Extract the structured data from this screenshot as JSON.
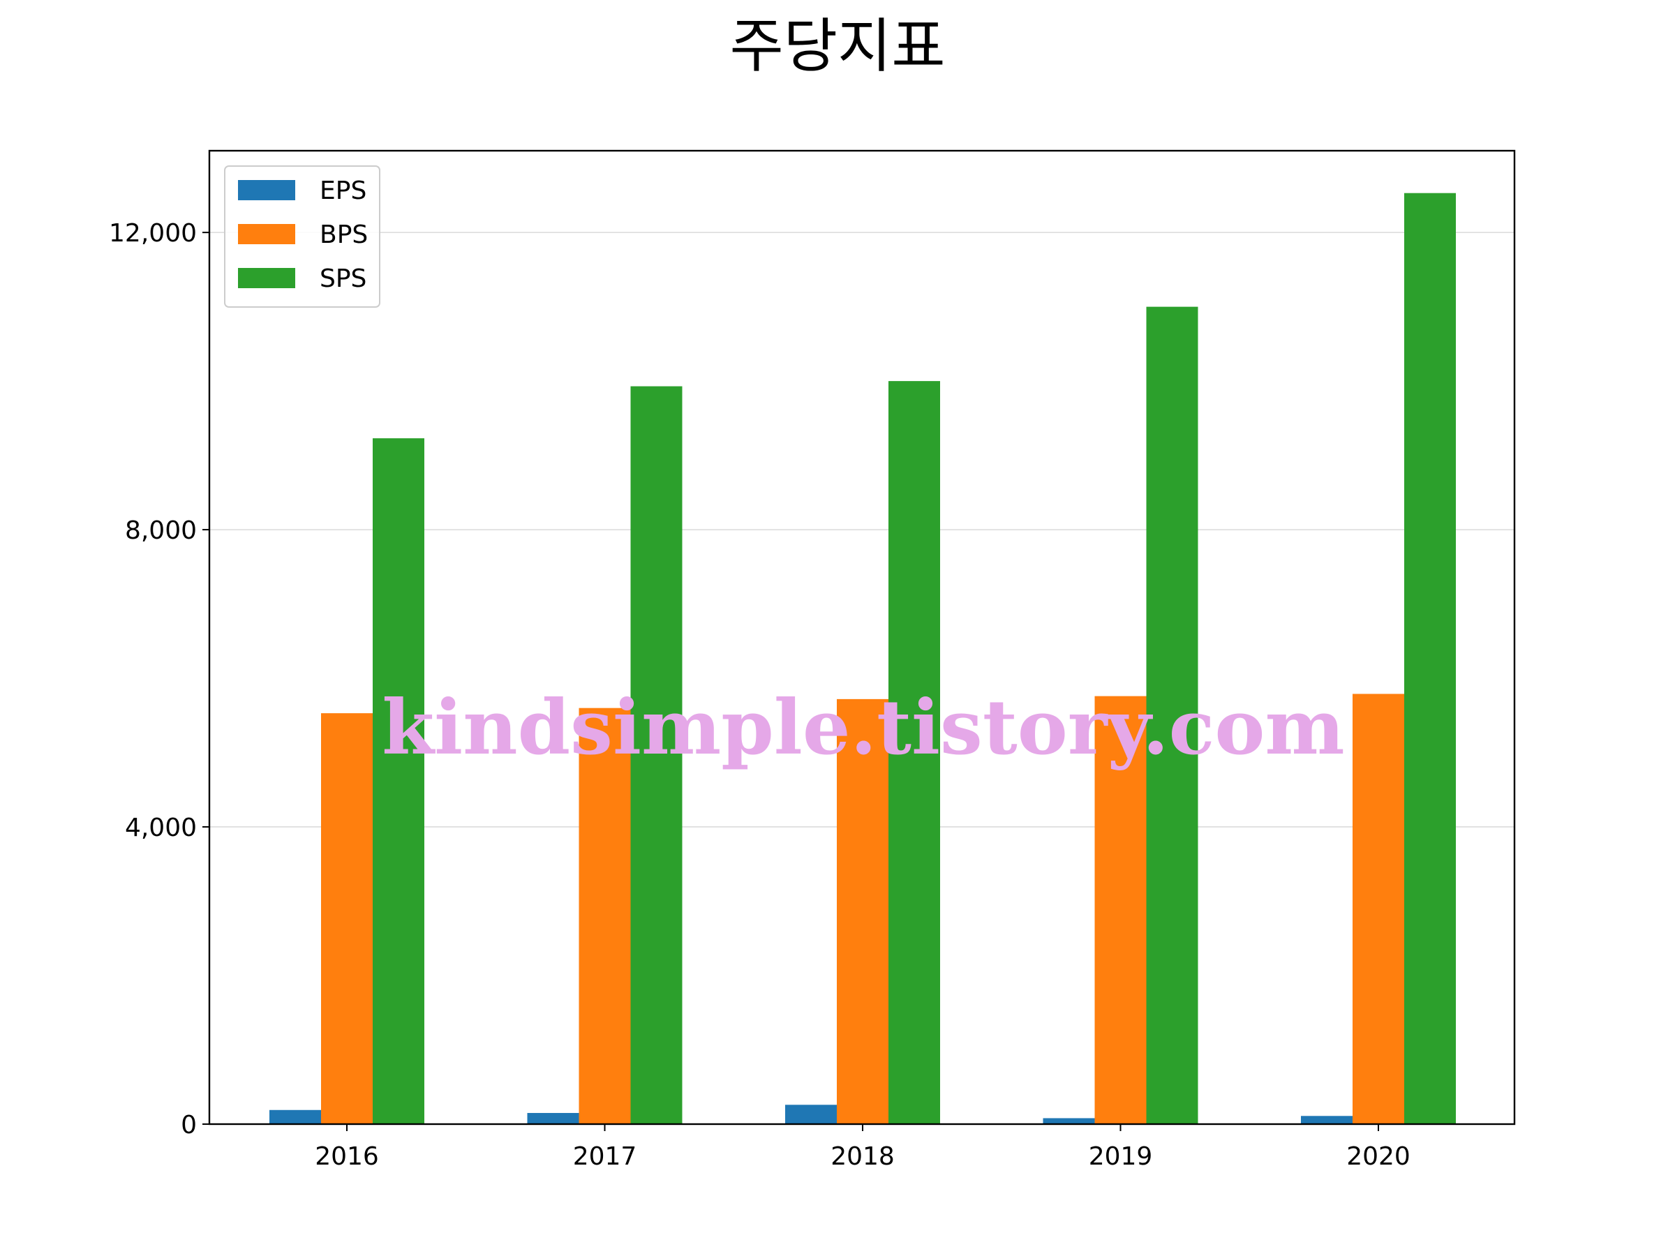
{
  "chart_data": {
    "type": "bar",
    "title": "주당지표",
    "categories": [
      "2016",
      "2017",
      "2018",
      "2019",
      "2020"
    ],
    "series": [
      {
        "name": "EPS",
        "color": "#1f77b4",
        "values": [
          190,
          150,
          260,
          80,
          110
        ]
      },
      {
        "name": "BPS",
        "color": "#ff7f0e",
        "values": [
          5530,
          5600,
          5720,
          5760,
          5790
        ]
      },
      {
        "name": "SPS",
        "color": "#2ca02c",
        "values": [
          9230,
          9930,
          10000,
          11000,
          12530
        ]
      }
    ],
    "xlabel": "",
    "ylabel": "",
    "ylim": [
      0,
      13100
    ],
    "yticks": [
      0,
      4000,
      8000,
      12000
    ],
    "ytick_labels": [
      "0",
      "4,000",
      "8,000",
      "12,000"
    ],
    "grid": "horizontal",
    "legend_position": "top-left",
    "watermark": "kindsimple.tistory.com"
  }
}
